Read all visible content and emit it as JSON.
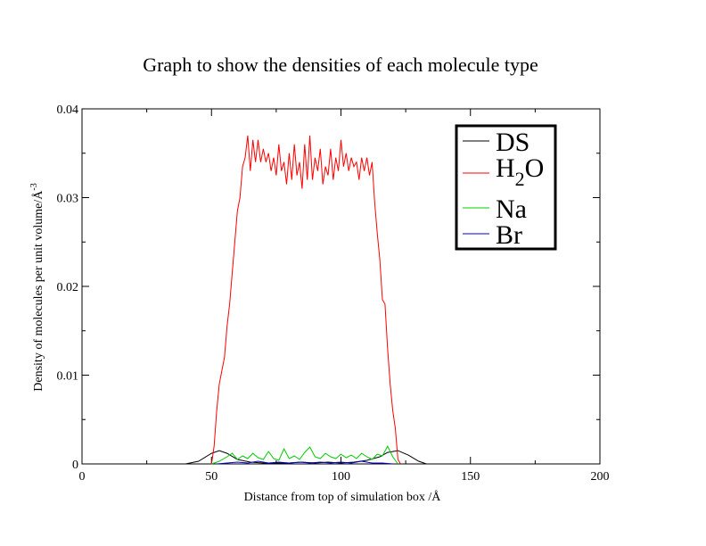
{
  "chart_data": {
    "type": "line",
    "title": "Graph to show the densities of each molecule type",
    "xlabel": "Distance from top of simulation box /Å",
    "ylabel": "Density of molecules per unit volume/Å",
    "ylabel_sup": "-3",
    "xlim": [
      0,
      200
    ],
    "ylim": [
      0,
      0.04
    ],
    "x_ticks": [
      0,
      50,
      100,
      150,
      200
    ],
    "x_tick_labels": [
      "0",
      "50",
      "100",
      "150",
      "200"
    ],
    "y_ticks": [
      0,
      0.01,
      0.02,
      0.03,
      0.04
    ],
    "y_tick_labels": [
      "0",
      "0.01",
      "0.02",
      "0.03",
      "0.04"
    ],
    "grid": false,
    "legend_position": "top-right",
    "series": [
      {
        "name": "DS",
        "color": "#000000",
        "x": [
          40,
          45,
          50,
          53,
          56,
          60,
          65,
          70,
          75,
          80,
          85,
          90,
          95,
          100,
          105,
          110,
          115,
          118,
          122,
          126,
          130,
          133
        ],
        "y": [
          0,
          0.0003,
          0.0012,
          0.0015,
          0.0012,
          0.0005,
          0.0002,
          0.0001,
          0.0001,
          0.0001,
          0.0002,
          0.0001,
          0.0002,
          0.0001,
          0.0002,
          0.0004,
          0.0008,
          0.0013,
          0.0015,
          0.001,
          0.0003,
          0
        ]
      },
      {
        "name": "H2O",
        "name_base": "H",
        "name_sub": "2",
        "name_tail": "O",
        "color": "#ff0000",
        "x": [
          50,
          51,
          52,
          53,
          54,
          55,
          56,
          57,
          58,
          59,
          60,
          61,
          62,
          63,
          64,
          65,
          66,
          67,
          68,
          69,
          70,
          71,
          72,
          73,
          74,
          75,
          76,
          77,
          78,
          79,
          80,
          81,
          82,
          83,
          84,
          85,
          86,
          87,
          88,
          89,
          90,
          91,
          92,
          93,
          94,
          95,
          96,
          97,
          98,
          99,
          100,
          101,
          102,
          103,
          104,
          105,
          106,
          107,
          108,
          109,
          110,
          111,
          112,
          113,
          114,
          115,
          116,
          117,
          118,
          119,
          120,
          121,
          122,
          123
        ],
        "y": [
          0,
          0.002,
          0.006,
          0.009,
          0.0105,
          0.012,
          0.0155,
          0.018,
          0.0215,
          0.025,
          0.0285,
          0.03,
          0.0335,
          0.0345,
          0.037,
          0.033,
          0.0365,
          0.034,
          0.0365,
          0.034,
          0.0355,
          0.034,
          0.035,
          0.033,
          0.0345,
          0.0325,
          0.036,
          0.033,
          0.034,
          0.0315,
          0.035,
          0.032,
          0.036,
          0.0325,
          0.034,
          0.031,
          0.036,
          0.032,
          0.037,
          0.032,
          0.0345,
          0.033,
          0.0355,
          0.0315,
          0.0335,
          0.0325,
          0.0355,
          0.032,
          0.0345,
          0.033,
          0.0365,
          0.0335,
          0.035,
          0.033,
          0.0345,
          0.0335,
          0.034,
          0.032,
          0.0345,
          0.033,
          0.0345,
          0.0325,
          0.034,
          0.0295,
          0.026,
          0.023,
          0.0185,
          0.018,
          0.013,
          0.009,
          0.006,
          0.004,
          0.0005,
          0
        ]
      },
      {
        "name": "Na",
        "color": "#00cc00",
        "x": [
          50,
          53,
          56,
          58,
          60,
          62,
          64,
          66,
          68,
          70,
          72,
          74,
          76,
          78,
          80,
          82,
          84,
          86,
          88,
          90,
          92,
          94,
          96,
          98,
          100,
          102,
          104,
          106,
          108,
          110,
          112,
          114,
          116,
          118,
          120,
          122
        ],
        "y": [
          0,
          0.0003,
          0.0008,
          0.0012,
          0.0005,
          0.0009,
          0.0006,
          0.0012,
          0.0007,
          0.0005,
          0.0014,
          0.0006,
          0.0004,
          0.0017,
          0.0006,
          0.0009,
          0.0005,
          0.0013,
          0.0019,
          0.0008,
          0.0006,
          0.0012,
          0.0008,
          0.0006,
          0.0011,
          0.0007,
          0.001,
          0.0006,
          0.0012,
          0.0008,
          0.0005,
          0.0011,
          0.0009,
          0.002,
          0.0008,
          0
        ]
      },
      {
        "name": "Br",
        "color": "#0000cc",
        "x": [
          52,
          56,
          60,
          64,
          68,
          72,
          76,
          80,
          84,
          88,
          92,
          96,
          100,
          104,
          108,
          112,
          116,
          120
        ],
        "y": [
          0,
          0.0001,
          0.0002,
          0.0001,
          0.0003,
          0.0001,
          0.0002,
          0.0001,
          0.0002,
          0.0001,
          0.0002,
          0.0001,
          0.0002,
          0.0001,
          0.0003,
          0.0001,
          0.0001,
          0
        ]
      }
    ]
  }
}
